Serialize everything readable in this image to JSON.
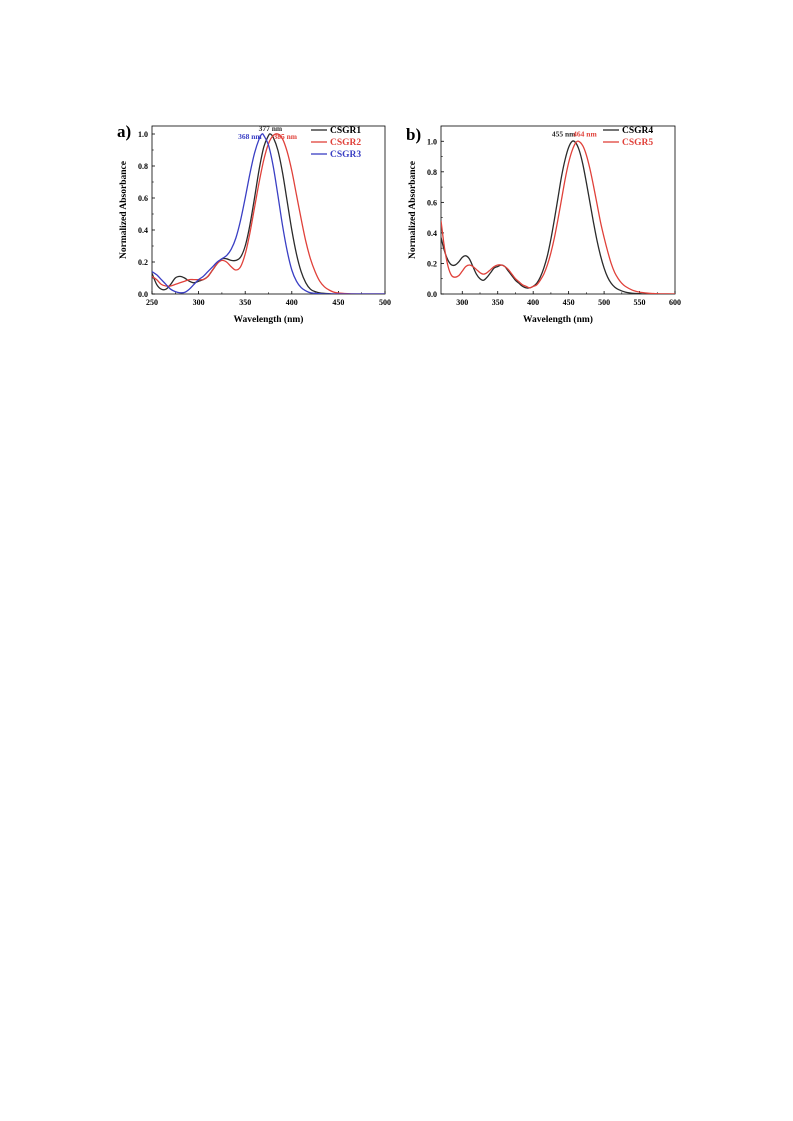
{
  "chart_data": [
    {
      "panel_label": "a)",
      "type": "line",
      "xlabel": "Wavelength (nm)",
      "ylabel": "Normalized Absorbance",
      "xlim": [
        250,
        500
      ],
      "ylim": [
        0.0,
        1.05
      ],
      "xticks": [
        250,
        300,
        350,
        400,
        450,
        500
      ],
      "xtick_labels": [
        "250",
        "300",
        "350",
        "400",
        "450",
        "500"
      ],
      "yticks": [
        0.0,
        0.2,
        0.4,
        0.6,
        0.8,
        1.0
      ],
      "ytick_labels": [
        "0.0",
        "0.2",
        "0.4",
        "0.6",
        "0.8",
        "1.0"
      ],
      "grid": false,
      "legend_position": "top-right",
      "series": [
        {
          "name": "CSGR1",
          "color": "#2b2b2b",
          "points": [
            [
              250,
              0.13
            ],
            [
              255,
              0.06
            ],
            [
              260,
              0.03
            ],
            [
              265,
              0.03
            ],
            [
              270,
              0.06
            ],
            [
              275,
              0.1
            ],
            [
              280,
              0.11
            ],
            [
              285,
              0.1
            ],
            [
              290,
              0.08
            ],
            [
              295,
              0.07
            ],
            [
              300,
              0.08
            ],
            [
              305,
              0.09
            ],
            [
              310,
              0.11
            ],
            [
              315,
              0.15
            ],
            [
              320,
              0.19
            ],
            [
              325,
              0.22
            ],
            [
              330,
              0.22
            ],
            [
              335,
              0.21
            ],
            [
              340,
              0.21
            ],
            [
              345,
              0.23
            ],
            [
              350,
              0.3
            ],
            [
              355,
              0.43
            ],
            [
              360,
              0.6
            ],
            [
              365,
              0.78
            ],
            [
              370,
              0.92
            ],
            [
              375,
              0.99
            ],
            [
              377,
              1.0
            ],
            [
              380,
              0.98
            ],
            [
              385,
              0.9
            ],
            [
              390,
              0.76
            ],
            [
              395,
              0.58
            ],
            [
              400,
              0.4
            ],
            [
              405,
              0.25
            ],
            [
              410,
              0.14
            ],
            [
              415,
              0.07
            ],
            [
              420,
              0.03
            ],
            [
              425,
              0.015
            ],
            [
              430,
              0.007
            ],
            [
              440,
              0.002
            ],
            [
              450,
              0.0
            ],
            [
              500,
              0.0
            ]
          ]
        },
        {
          "name": "CSGR2",
          "color": "#e0413a",
          "points": [
            [
              250,
              0.11
            ],
            [
              255,
              0.09
            ],
            [
              260,
              0.06
            ],
            [
              265,
              0.05
            ],
            [
              270,
              0.05
            ],
            [
              275,
              0.06
            ],
            [
              280,
              0.07
            ],
            [
              285,
              0.08
            ],
            [
              290,
              0.09
            ],
            [
              295,
              0.09
            ],
            [
              300,
              0.09
            ],
            [
              305,
              0.09
            ],
            [
              310,
              0.11
            ],
            [
              315,
              0.15
            ],
            [
              320,
              0.19
            ],
            [
              325,
              0.21
            ],
            [
              330,
              0.2
            ],
            [
              335,
              0.17
            ],
            [
              340,
              0.15
            ],
            [
              345,
              0.17
            ],
            [
              350,
              0.25
            ],
            [
              355,
              0.38
            ],
            [
              360,
              0.54
            ],
            [
              365,
              0.7
            ],
            [
              370,
              0.84
            ],
            [
              375,
              0.94
            ],
            [
              380,
              0.99
            ],
            [
              385,
              1.0
            ],
            [
              390,
              0.97
            ],
            [
              395,
              0.89
            ],
            [
              400,
              0.77
            ],
            [
              405,
              0.62
            ],
            [
              410,
              0.47
            ],
            [
              415,
              0.33
            ],
            [
              420,
              0.22
            ],
            [
              425,
              0.14
            ],
            [
              430,
              0.08
            ],
            [
              435,
              0.045
            ],
            [
              440,
              0.025
            ],
            [
              445,
              0.012
            ],
            [
              450,
              0.006
            ],
            [
              460,
              0.002
            ],
            [
              470,
              0.0
            ],
            [
              500,
              0.0
            ]
          ]
        },
        {
          "name": "CSGR3",
          "color": "#3a3fc4",
          "points": [
            [
              250,
              0.14
            ],
            [
              255,
              0.12
            ],
            [
              260,
              0.09
            ],
            [
              265,
              0.06
            ],
            [
              270,
              0.03
            ],
            [
              275,
              0.015
            ],
            [
              280,
              0.008
            ],
            [
              285,
              0.01
            ],
            [
              290,
              0.03
            ],
            [
              295,
              0.06
            ],
            [
              300,
              0.09
            ],
            [
              305,
              0.11
            ],
            [
              310,
              0.14
            ],
            [
              315,
              0.17
            ],
            [
              320,
              0.2
            ],
            [
              325,
              0.22
            ],
            [
              330,
              0.24
            ],
            [
              335,
              0.28
            ],
            [
              340,
              0.35
            ],
            [
              345,
              0.46
            ],
            [
              350,
              0.6
            ],
            [
              355,
              0.75
            ],
            [
              360,
              0.88
            ],
            [
              365,
              0.97
            ],
            [
              368,
              1.0
            ],
            [
              370,
              0.99
            ],
            [
              375,
              0.93
            ],
            [
              380,
              0.8
            ],
            [
              385,
              0.62
            ],
            [
              390,
              0.43
            ],
            [
              395,
              0.27
            ],
            [
              400,
              0.15
            ],
            [
              405,
              0.08
            ],
            [
              410,
              0.04
            ],
            [
              415,
              0.02
            ],
            [
              420,
              0.008
            ],
            [
              430,
              0.002
            ],
            [
              440,
              0.0
            ],
            [
              500,
              0.0
            ]
          ]
        }
      ],
      "annotations": [
        {
          "text": "377 nm",
          "x": 377,
          "y": 1.02,
          "color": "#2b2b2b"
        },
        {
          "text": "368 nm",
          "x": 355,
          "y": 0.97,
          "color": "#3a3fc4"
        },
        {
          "text": "385 nm",
          "x": 393,
          "y": 0.97,
          "color": "#e0413a"
        }
      ]
    },
    {
      "panel_label": "b)",
      "type": "line",
      "xlabel": "Wavelength (nm)",
      "ylabel": "Normalized Absorbance",
      "xlim": [
        270,
        600
      ],
      "ylim": [
        0.0,
        1.1
      ],
      "xticks": [
        300,
        350,
        400,
        450,
        500,
        550,
        600
      ],
      "xtick_labels": [
        "300",
        "350",
        "400",
        "450",
        "500",
        "550",
        "600"
      ],
      "yticks": [
        0.0,
        0.2,
        0.4,
        0.6,
        0.8,
        1.0
      ],
      "ytick_labels": [
        "0.0",
        "0.2",
        "0.4",
        "0.6",
        "0.8",
        "1.0"
      ],
      "grid": false,
      "legend_position": "top-right",
      "series": [
        {
          "name": "CSGR4",
          "color": "#2b2b2b",
          "points": [
            [
              270,
              0.37
            ],
            [
              275,
              0.28
            ],
            [
              280,
              0.22
            ],
            [
              285,
              0.19
            ],
            [
              290,
              0.19
            ],
            [
              295,
              0.21
            ],
            [
              300,
              0.24
            ],
            [
              305,
              0.25
            ],
            [
              310,
              0.23
            ],
            [
              315,
              0.18
            ],
            [
              320,
              0.13
            ],
            [
              325,
              0.1
            ],
            [
              330,
              0.09
            ],
            [
              335,
              0.11
            ],
            [
              340,
              0.14
            ],
            [
              345,
              0.17
            ],
            [
              350,
              0.18
            ],
            [
              355,
              0.19
            ],
            [
              360,
              0.18
            ],
            [
              365,
              0.15
            ],
            [
              370,
              0.12
            ],
            [
              375,
              0.09
            ],
            [
              380,
              0.07
            ],
            [
              385,
              0.05
            ],
            [
              390,
              0.04
            ],
            [
              395,
              0.04
            ],
            [
              400,
              0.05
            ],
            [
              405,
              0.07
            ],
            [
              410,
              0.11
            ],
            [
              415,
              0.17
            ],
            [
              420,
              0.25
            ],
            [
              425,
              0.36
            ],
            [
              430,
              0.49
            ],
            [
              435,
              0.63
            ],
            [
              440,
              0.77
            ],
            [
              445,
              0.88
            ],
            [
              450,
              0.96
            ],
            [
              455,
              1.0
            ],
            [
              460,
              0.99
            ],
            [
              465,
              0.94
            ],
            [
              470,
              0.85
            ],
            [
              475,
              0.73
            ],
            [
              480,
              0.6
            ],
            [
              485,
              0.47
            ],
            [
              490,
              0.35
            ],
            [
              495,
              0.25
            ],
            [
              500,
              0.17
            ],
            [
              505,
              0.11
            ],
            [
              510,
              0.07
            ],
            [
              515,
              0.045
            ],
            [
              520,
              0.03
            ],
            [
              530,
              0.012
            ],
            [
              540,
              0.005
            ],
            [
              550,
              0.002
            ],
            [
              560,
              0.0
            ],
            [
              600,
              0.0
            ]
          ]
        },
        {
          "name": "CSGR5",
          "color": "#e0413a",
          "points": [
            [
              270,
              0.48
            ],
            [
              275,
              0.3
            ],
            [
              280,
              0.18
            ],
            [
              285,
              0.12
            ],
            [
              290,
              0.11
            ],
            [
              295,
              0.12
            ],
            [
              300,
              0.15
            ],
            [
              305,
              0.18
            ],
            [
              310,
              0.19
            ],
            [
              315,
              0.18
            ],
            [
              320,
              0.16
            ],
            [
              325,
              0.14
            ],
            [
              330,
              0.13
            ],
            [
              335,
              0.14
            ],
            [
              340,
              0.16
            ],
            [
              345,
              0.18
            ],
            [
              350,
              0.19
            ],
            [
              355,
              0.19
            ],
            [
              360,
              0.18
            ],
            [
              365,
              0.16
            ],
            [
              370,
              0.13
            ],
            [
              375,
              0.1
            ],
            [
              380,
              0.08
            ],
            [
              385,
              0.06
            ],
            [
              390,
              0.05
            ],
            [
              395,
              0.04
            ],
            [
              400,
              0.05
            ],
            [
              405,
              0.06
            ],
            [
              410,
              0.09
            ],
            [
              415,
              0.13
            ],
            [
              420,
              0.19
            ],
            [
              425,
              0.27
            ],
            [
              430,
              0.37
            ],
            [
              435,
              0.49
            ],
            [
              440,
              0.62
            ],
            [
              445,
              0.75
            ],
            [
              450,
              0.86
            ],
            [
              455,
              0.94
            ],
            [
              460,
              0.99
            ],
            [
              464,
              1.0
            ],
            [
              470,
              0.97
            ],
            [
              475,
              0.91
            ],
            [
              480,
              0.82
            ],
            [
              485,
              0.71
            ],
            [
              490,
              0.59
            ],
            [
              495,
              0.47
            ],
            [
              500,
              0.37
            ],
            [
              505,
              0.28
            ],
            [
              510,
              0.2
            ],
            [
              515,
              0.14
            ],
            [
              520,
              0.1
            ],
            [
              525,
              0.07
            ],
            [
              530,
              0.05
            ],
            [
              540,
              0.025
            ],
            [
              550,
              0.012
            ],
            [
              560,
              0.006
            ],
            [
              570,
              0.003
            ],
            [
              580,
              0.001
            ],
            [
              600,
              0.0
            ]
          ]
        }
      ],
      "annotations": [
        {
          "text": "455 nm",
          "x": 443,
          "y": 1.03,
          "color": "#2b2b2b"
        },
        {
          "text": "464 nm",
          "x": 473,
          "y": 1.03,
          "color": "#e0413a"
        }
      ]
    }
  ]
}
